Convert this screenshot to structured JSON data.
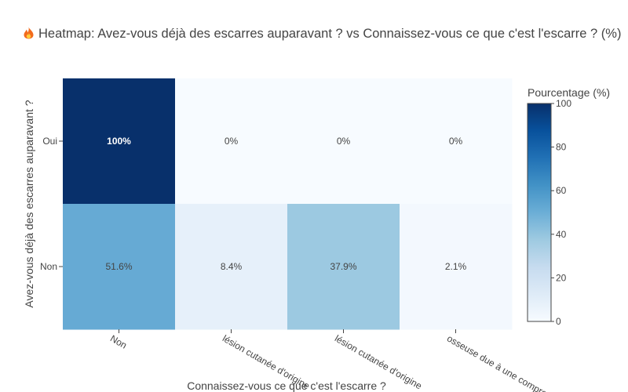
{
  "chart_data": {
    "type": "heatmap",
    "title": "Heatmap: Avez-vous déjà des escarres auparavant ? vs Connaissez-vous ce que c'est l'escarre ? (%)",
    "title_icon": "fire-icon",
    "xlabel": "Connaissez-vous ce que c'est l'escarre ?",
    "ylabel": "Avez-vous déjà des escarres auparavant ?",
    "x_categories": [
      "Non",
      "lésion cutanée d'origine",
      "lésion cutanée d'origine",
      "osseuse due à une compression"
    ],
    "y_categories": [
      "Oui",
      "Non"
    ],
    "z": [
      [
        100,
        0,
        0,
        0
      ],
      [
        51.6,
        8.4,
        37.9,
        2.1
      ]
    ],
    "cell_labels": [
      [
        "100%",
        "0%",
        "0%",
        "0%"
      ],
      [
        "51.6%",
        "8.4%",
        "37.9%",
        "2.1%"
      ]
    ],
    "colorscale": "Blues",
    "colorscale_stops": [
      "#f7fbff",
      "#deebf7",
      "#c6dbef",
      "#9ecae1",
      "#6baed6",
      "#4292c6",
      "#2171b5",
      "#08519c",
      "#08306b"
    ],
    "zmin": 0,
    "zmax": 100,
    "colorbar": {
      "title": "Pourcentage (%)",
      "tick_values": [
        0,
        20,
        40,
        60,
        80,
        100
      ],
      "tick_labels": [
        "0",
        "20",
        "40",
        "60",
        "80",
        "100"
      ]
    },
    "grid": false,
    "legend": "colorbar-right"
  }
}
